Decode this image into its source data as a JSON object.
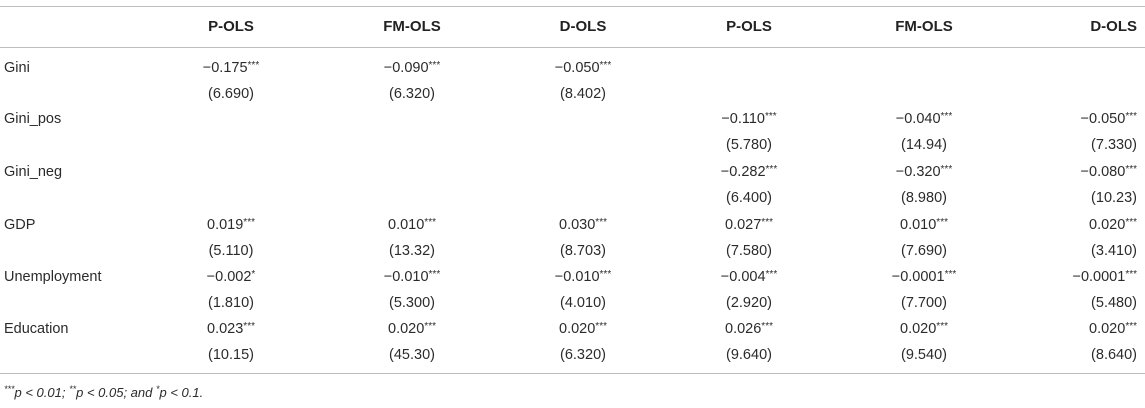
{
  "table": {
    "columns": [
      "P-OLS",
      "FM-OLS",
      "D-OLS",
      "P-OLS",
      "FM-OLS",
      "D-OLS"
    ],
    "rows": [
      {
        "label": "Gini",
        "coef": [
          {
            "v": "−0.175",
            "s": "***"
          },
          {
            "v": "−0.090",
            "s": "***"
          },
          {
            "v": "−0.050",
            "s": "***"
          },
          {
            "v": "",
            "s": ""
          },
          {
            "v": "",
            "s": ""
          },
          {
            "v": "",
            "s": ""
          }
        ],
        "se": [
          "(6.690)",
          "(6.320)",
          "(8.402)",
          "",
          "",
          ""
        ]
      },
      {
        "label": "Gini_pos",
        "coef": [
          {
            "v": "",
            "s": ""
          },
          {
            "v": "",
            "s": ""
          },
          {
            "v": "",
            "s": ""
          },
          {
            "v": "−0.110",
            "s": "***"
          },
          {
            "v": "−0.040",
            "s": "***"
          },
          {
            "v": "−0.050",
            "s": "***"
          }
        ],
        "se": [
          "",
          "",
          "",
          "(5.780)",
          "(14.94)",
          "(7.330)"
        ]
      },
      {
        "label": "Gini_neg",
        "coef": [
          {
            "v": "",
            "s": ""
          },
          {
            "v": "",
            "s": ""
          },
          {
            "v": "",
            "s": ""
          },
          {
            "v": "−0.282",
            "s": "***"
          },
          {
            "v": "−0.320",
            "s": "***"
          },
          {
            "v": "−0.080",
            "s": "***"
          }
        ],
        "se": [
          "",
          "",
          "",
          "(6.400)",
          "(8.980)",
          "(10.23)"
        ]
      },
      {
        "label": "GDP",
        "coef": [
          {
            "v": "0.019",
            "s": "***"
          },
          {
            "v": "0.010",
            "s": "***"
          },
          {
            "v": "0.030",
            "s": "***"
          },
          {
            "v": "0.027",
            "s": "***"
          },
          {
            "v": "0.010",
            "s": "***"
          },
          {
            "v": "0.020",
            "s": "***"
          }
        ],
        "se": [
          "(5.110)",
          "(13.32)",
          "(8.703)",
          "(7.580)",
          "(7.690)",
          "(3.410)"
        ]
      },
      {
        "label": "Unemployment",
        "coef": [
          {
            "v": "−0.002",
            "s": "*"
          },
          {
            "v": "−0.010",
            "s": "***"
          },
          {
            "v": "−0.010",
            "s": "***"
          },
          {
            "v": "−0.004",
            "s": "***"
          },
          {
            "v": "−0.0001",
            "s": "***"
          },
          {
            "v": "−0.0001",
            "s": "***"
          }
        ],
        "se": [
          "(1.810)",
          "(5.300)",
          "(4.010)",
          "(2.920)",
          "(7.700)",
          "(5.480)"
        ]
      },
      {
        "label": "Education",
        "coef": [
          {
            "v": "0.023",
            "s": "***"
          },
          {
            "v": "0.020",
            "s": "***"
          },
          {
            "v": "0.020",
            "s": "***"
          },
          {
            "v": "0.026",
            "s": "***"
          },
          {
            "v": "0.020",
            "s": "***"
          },
          {
            "v": "0.020",
            "s": "***"
          }
        ],
        "se": [
          "(10.15)",
          "(45.30)",
          "(6.320)",
          "(9.640)",
          "(9.540)",
          "(8.640)"
        ]
      }
    ],
    "note": {
      "s1": "***",
      "t1": "p < 0.01; ",
      "s2": "**",
      "t2": "p < 0.05; and ",
      "s3": "*",
      "t3": "p < 0.1."
    }
  }
}
